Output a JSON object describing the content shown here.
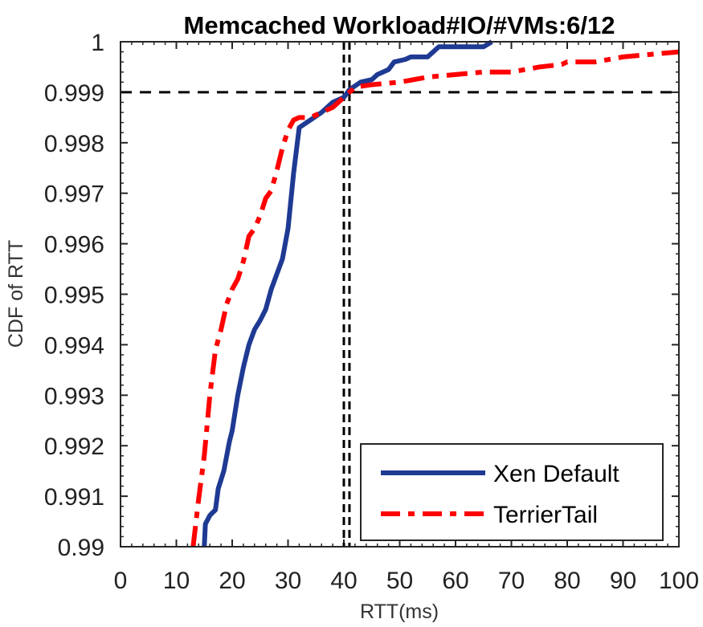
{
  "chart_data": {
    "type": "line",
    "title": "Memcached Workload#IO/#VMs:6/12",
    "xlabel": "RTT(ms)",
    "ylabel": "CDF of RTT",
    "xlim": [
      0,
      100
    ],
    "ylim": [
      0.99,
      1.0
    ],
    "x_ticks": [
      "0",
      "10",
      "20",
      "30",
      "40",
      "50",
      "60",
      "70",
      "80",
      "90",
      "100"
    ],
    "y_ticks": [
      "0.99",
      "0.991",
      "0.992",
      "0.993",
      "0.994",
      "0.995",
      "0.996",
      "0.997",
      "0.998",
      "0.999",
      "1"
    ],
    "grid": false,
    "legend_position": "bottom-right",
    "reference_lines": {
      "horizontal_y": 0.999,
      "vertical_x": [
        40,
        41
      ]
    },
    "series": [
      {
        "name": "Xen Default",
        "color": "#1f3a93",
        "style": "solid",
        "points": [
          [
            15.0,
            0.99
          ],
          [
            15.2,
            0.99045
          ],
          [
            16.0,
            0.99062
          ],
          [
            17.0,
            0.99073
          ],
          [
            17.5,
            0.99115
          ],
          [
            18.5,
            0.9915
          ],
          [
            19.5,
            0.99208
          ],
          [
            20.0,
            0.9923
          ],
          [
            21.0,
            0.993
          ],
          [
            22.0,
            0.99355
          ],
          [
            23.0,
            0.994
          ],
          [
            24.0,
            0.9943
          ],
          [
            25.0,
            0.99448
          ],
          [
            26.0,
            0.9947
          ],
          [
            27.0,
            0.9951
          ],
          [
            28.0,
            0.9954
          ],
          [
            29.0,
            0.9957
          ],
          [
            30.0,
            0.9963
          ],
          [
            31.0,
            0.9974
          ],
          [
            32.0,
            0.9983
          ],
          [
            34.0,
            0.99845
          ],
          [
            36.0,
            0.9986
          ],
          [
            38.0,
            0.9988
          ],
          [
            40.0,
            0.9989
          ],
          [
            41.0,
            0.99905
          ],
          [
            43.0,
            0.9992
          ],
          [
            45.0,
            0.99925
          ],
          [
            46.0,
            0.99935
          ],
          [
            48.0,
            0.99945
          ],
          [
            49.0,
            0.9996
          ],
          [
            51.0,
            0.99965
          ],
          [
            52.0,
            0.9997
          ],
          [
            55.0,
            0.9997
          ],
          [
            57.0,
            0.9999
          ],
          [
            60.0,
            0.9999
          ],
          [
            63.0,
            0.9999
          ],
          [
            65.0,
            0.9999
          ],
          [
            66.5,
            1.0
          ]
        ]
      },
      {
        "name": "TerrierTail",
        "color": "#ff0000",
        "style": "dash-dot",
        "points": [
          [
            13.0,
            0.99
          ],
          [
            14.0,
            0.99095
          ],
          [
            15.0,
            0.9918
          ],
          [
            16.0,
            0.993
          ],
          [
            17.0,
            0.9939
          ],
          [
            18.0,
            0.9943
          ],
          [
            19.0,
            0.9948
          ],
          [
            20.0,
            0.9951
          ],
          [
            21.0,
            0.9953
          ],
          [
            22.0,
            0.99565
          ],
          [
            23.0,
            0.99615
          ],
          [
            24.0,
            0.9963
          ],
          [
            25.0,
            0.99655
          ],
          [
            26.0,
            0.9969
          ],
          [
            27.0,
            0.99705
          ],
          [
            28.0,
            0.99745
          ],
          [
            29.0,
            0.9979
          ],
          [
            30.0,
            0.99825
          ],
          [
            31.0,
            0.99845
          ],
          [
            32.0,
            0.9985
          ],
          [
            34.0,
            0.9985
          ],
          [
            36.0,
            0.9986
          ],
          [
            38.0,
            0.9987
          ],
          [
            40.0,
            0.9989
          ],
          [
            42.0,
            0.9991
          ],
          [
            45.0,
            0.99915
          ],
          [
            50.0,
            0.9992
          ],
          [
            55.0,
            0.9993
          ],
          [
            60.0,
            0.99935
          ],
          [
            65.0,
            0.9994
          ],
          [
            70.0,
            0.9994
          ],
          [
            75.0,
            0.9995
          ],
          [
            79.0,
            0.99955
          ],
          [
            80.0,
            0.9996
          ],
          [
            85.0,
            0.9996
          ],
          [
            90.0,
            0.9997
          ],
          [
            95.0,
            0.99975
          ],
          [
            100.0,
            0.9998
          ]
        ]
      }
    ]
  }
}
